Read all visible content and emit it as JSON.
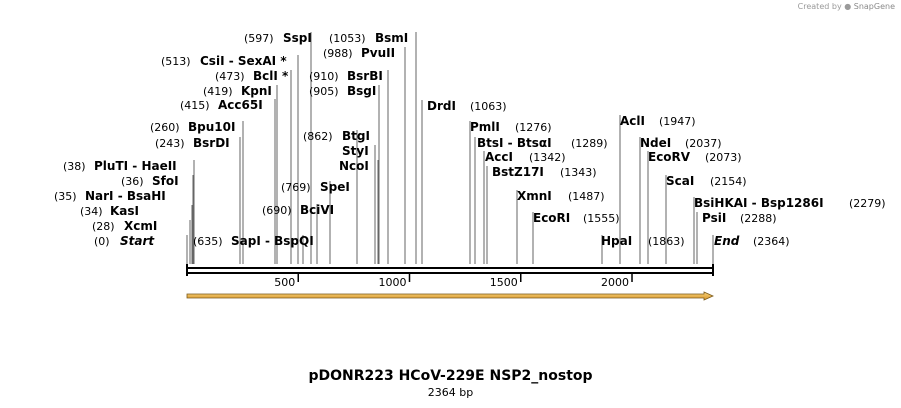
{
  "credit": {
    "prefix": "Created by",
    "brand": "SnapGene"
  },
  "map": {
    "title": "pDONR223 HCoV-229E NSP2_nostop",
    "length_label": "2364 bp",
    "length": 2364,
    "ticks": [
      "500",
      "1000",
      "1500",
      "2000"
    ]
  },
  "sites": [
    {
      "pos": "(0)",
      "name": "Start"
    },
    {
      "pos": "(28)",
      "name": "XcmI"
    },
    {
      "pos": "(34)",
      "name": "KasI"
    },
    {
      "pos": "(35)",
      "name": "NarI  - BsaHI"
    },
    {
      "pos": "(36)",
      "name": "SfoI"
    },
    {
      "pos": "(38)",
      "name": "PluTI  - HaeII"
    },
    {
      "pos": "(243)",
      "name": "BsrDI"
    },
    {
      "pos": "(260)",
      "name": "Bpu10I"
    },
    {
      "pos": "(415)",
      "name": "Acc65I"
    },
    {
      "pos": "(419)",
      "name": "KpnI"
    },
    {
      "pos": "(473)",
      "name": "BclI *"
    },
    {
      "pos": "(513)",
      "name": "CsiI  - SexAI *"
    },
    {
      "pos": "(597)",
      "name": "SspI"
    },
    {
      "pos": "(635)",
      "name": "SapI  - BspQI"
    },
    {
      "pos": "(690)",
      "name": "BciVI"
    },
    {
      "pos": "(769)",
      "name": "SpeI"
    },
    {
      "pos": "(862)",
      "name": "BtgI"
    },
    {
      "pos": "",
      "name": "StyI"
    },
    {
      "pos": "",
      "name": "NcoI"
    },
    {
      "pos": "(905)",
      "name": "BsgI"
    },
    {
      "pos": "(910)",
      "name": "BsrBI"
    },
    {
      "pos": "(988)",
      "name": "PvuII"
    },
    {
      "pos": "(1053)",
      "name": "BsmI"
    },
    {
      "pos": "(1063)",
      "name": "DrdI"
    },
    {
      "pos": "(1276)",
      "name": "PmlI"
    },
    {
      "pos": "(1289)",
      "name": "BtsI  - BtsαI"
    },
    {
      "pos": "(1342)",
      "name": "AccI"
    },
    {
      "pos": "(1343)",
      "name": "BstZ17I"
    },
    {
      "pos": "(1487)",
      "name": "XmnI"
    },
    {
      "pos": "(1555)",
      "name": "EcoRI"
    },
    {
      "pos": "(1863)",
      "name": "HpaI"
    },
    {
      "pos": "(1947)",
      "name": "AclI"
    },
    {
      "pos": "(2037)",
      "name": "NdeI"
    },
    {
      "pos": "(2073)",
      "name": "EcoRV"
    },
    {
      "pos": "(2154)",
      "name": "ScaI"
    },
    {
      "pos": "(2279)",
      "name": "BsiHKAI  - Bsp1286I"
    },
    {
      "pos": "(2288)",
      "name": "PsiI"
    },
    {
      "pos": "(2364)",
      "name": "End"
    }
  ]
}
